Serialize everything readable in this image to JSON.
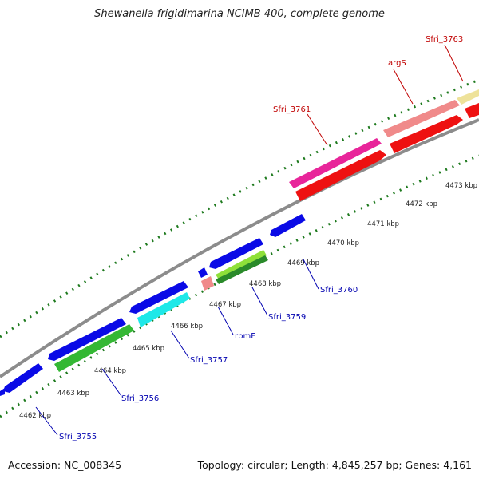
{
  "title": "Shewanella frigidimarina NCIMB 400, complete genome",
  "footer": {
    "accession": "Accession: NC_008345",
    "summary": "Topology: circular; Length: 4,845,257 bp; Genes: 4,161"
  },
  "colors": {
    "backbone": "#8a8a8a",
    "tick": "#1e7a1e",
    "forward_label": "#c00000",
    "reverse_label": "#0000b0"
  },
  "ticks": [
    {
      "label": "4462 kbp"
    },
    {
      "label": "4463 kbp"
    },
    {
      "label": "4464 kbp"
    },
    {
      "label": "4465 kbp"
    },
    {
      "label": "4466 kbp"
    },
    {
      "label": "4467 kbp"
    },
    {
      "label": "4468 kbp"
    },
    {
      "label": "4469 kbp"
    },
    {
      "label": "4470 kbp"
    },
    {
      "label": "4471 kbp"
    },
    {
      "label": "4472 kbp"
    },
    {
      "label": "4473 kbp"
    }
  ],
  "gene_labels": [
    {
      "text": "Sfri_3761",
      "strand": "forward"
    },
    {
      "text": "argS",
      "strand": "forward"
    },
    {
      "text": "Sfri_3763",
      "strand": "forward"
    },
    {
      "text": "Sfri_3755",
      "strand": "reverse"
    },
    {
      "text": "Sfri_3756",
      "strand": "reverse"
    },
    {
      "text": "Sfri_3757",
      "strand": "reverse"
    },
    {
      "text": "rpmE",
      "strand": "reverse"
    },
    {
      "text": "Sfri_3759",
      "strand": "reverse"
    },
    {
      "text": "Sfri_3760",
      "strand": "reverse"
    }
  ]
}
